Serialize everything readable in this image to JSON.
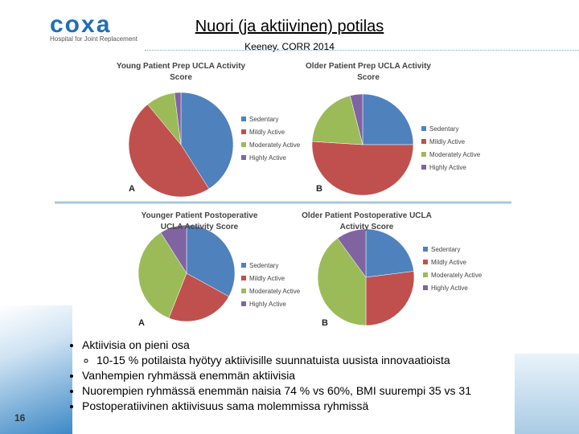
{
  "slide": {
    "logo": "coxa",
    "logo_tagline": "Hospital for Joint Replacement",
    "title": "Nuori (ja aktiivinen) potilas",
    "subtitle": "Keeney, CORR 2014",
    "bullets": [
      "Aktiivisia on pieni osa",
      "Vanhempien ryhmässä enemmän aktiivisia",
      "Nuorempien ryhmässä enemmän naisia 74 % vs 60%, BMI suurempi 35 vs 31",
      "Postoperatiivinen aktiivisuus sama molemmissa ryhmissä"
    ],
    "sub_bullet": "10-15 % potilaista hyötyy aktiivisille suunnatuista uusista innovaatioista",
    "page_number": 16
  },
  "chart_data": [
    {
      "type": "pie",
      "title": "Young Patient Prep UCLA Activity Score",
      "panel_label": "A",
      "categories": [
        "Sedentary",
        "Mildly Active",
        "Moderately Active",
        "Highly Active"
      ],
      "values": [
        41,
        48,
        9,
        2
      ],
      "colors": [
        "#4f81bd",
        "#c0504d",
        "#9bbb59",
        "#8064a2"
      ]
    },
    {
      "type": "pie",
      "title": "Older Patient Prep UCLA Activity Score",
      "panel_label": "B",
      "categories": [
        "Sedentary",
        "Mildly Active",
        "Moderately Active",
        "Highly Active"
      ],
      "values": [
        25,
        51,
        20,
        4
      ],
      "colors": [
        "#4f81bd",
        "#c0504d",
        "#9bbb59",
        "#8064a2"
      ]
    },
    {
      "type": "pie",
      "title": "Younger Patient Postoperative UCLA Activity Score",
      "panel_label": "A",
      "categories": [
        "Sedentary",
        "Mildly Active",
        "Moderately Active",
        "Highly Active"
      ],
      "values": [
        33,
        23,
        35,
        9
      ],
      "colors": [
        "#4f81bd",
        "#c0504d",
        "#9bbb59",
        "#8064a2"
      ]
    },
    {
      "type": "pie",
      "title": "Older Patient Postoperative UCLA Activity Score",
      "panel_label": "B",
      "categories": [
        "Sedentary",
        "Mildly Active",
        "Moderately Active",
        "Highly Active"
      ],
      "values": [
        23,
        27,
        40,
        10
      ],
      "colors": [
        "#4f81bd",
        "#c0504d",
        "#9bbb59",
        "#8064a2"
      ]
    }
  ]
}
